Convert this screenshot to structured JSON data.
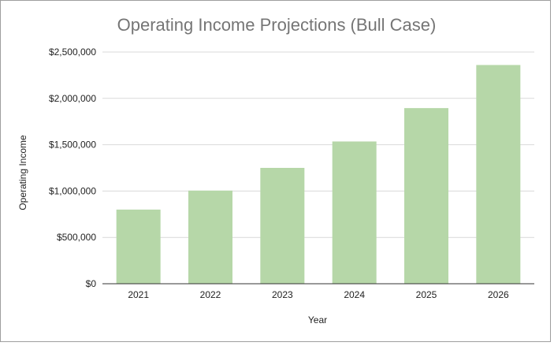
{
  "chart_data": {
    "type": "bar",
    "title": "Operating Income Projections (Bull Case)",
    "xlabel": "Year",
    "ylabel": "Operating Income",
    "categories": [
      "2021",
      "2022",
      "2023",
      "2024",
      "2025",
      "2026"
    ],
    "values": [
      800000,
      1005000,
      1250000,
      1535000,
      1895000,
      2360000
    ],
    "ylim": [
      0,
      2500000
    ],
    "yticks": [
      0,
      500000,
      1000000,
      1500000,
      2000000,
      2500000
    ],
    "ytick_labels": [
      "$0",
      "$500,000",
      "$1,000,000",
      "$1,500,000",
      "$2,000,000",
      "$2,500,000"
    ],
    "grid": true,
    "legend": "none",
    "bar_color": "#b6d7a8",
    "gridline_color": "#d9d9d9",
    "axis_color": "#333333"
  }
}
